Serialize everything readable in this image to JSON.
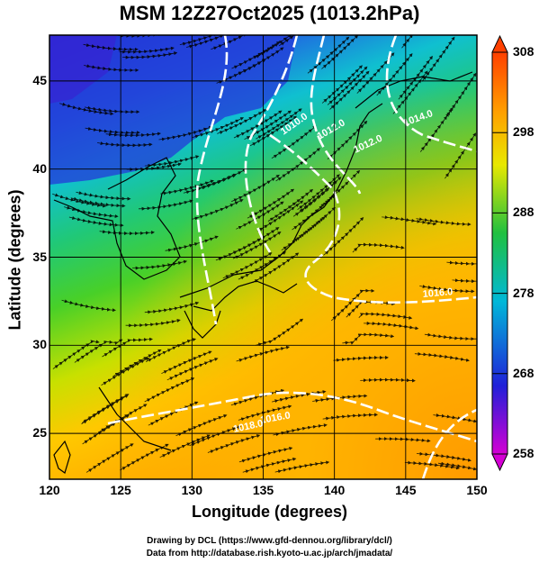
{
  "figure": {
    "title": "MSM 12Z27Oct2025 (1013.2hPa)",
    "xlabel": "Longitude (degrees)",
    "ylabel": "Latitude  (degrees)",
    "credit_line1": "Drawing by DCL (https://www.gfd-dennou.org/library/dcl/)",
    "credit_line2": "Data from http://database.rish.kyoto-u.ac.jp/arch/jmadata/"
  },
  "map": {
    "lon_range": [
      120,
      150
    ],
    "lat_range": [
      22.4,
      47.6
    ],
    "lon_ticks": [
      "120",
      "125",
      "130",
      "135",
      "140",
      "145",
      "150"
    ],
    "lat_ticks": [
      "25",
      "30",
      "35",
      "40",
      "45"
    ],
    "field": "temperature (K) with wind streamlines",
    "streamlines": true,
    "grid": true
  },
  "colorbar": {
    "range": [
      258,
      308
    ],
    "ticks": [
      "258",
      "268",
      "278",
      "288",
      "298",
      "308"
    ],
    "colors": [
      "#d400d4",
      "#2020d8",
      "#00b8d8",
      "#20c040",
      "#e8e800",
      "#ffa000",
      "#ff4000"
    ]
  },
  "contours": {
    "labels": [
      "1010.0",
      "1012.0",
      "1012.0",
      "1014.0",
      "1016.0",
      "1016.0",
      "1018.0"
    ],
    "color": "#ffffff"
  }
}
